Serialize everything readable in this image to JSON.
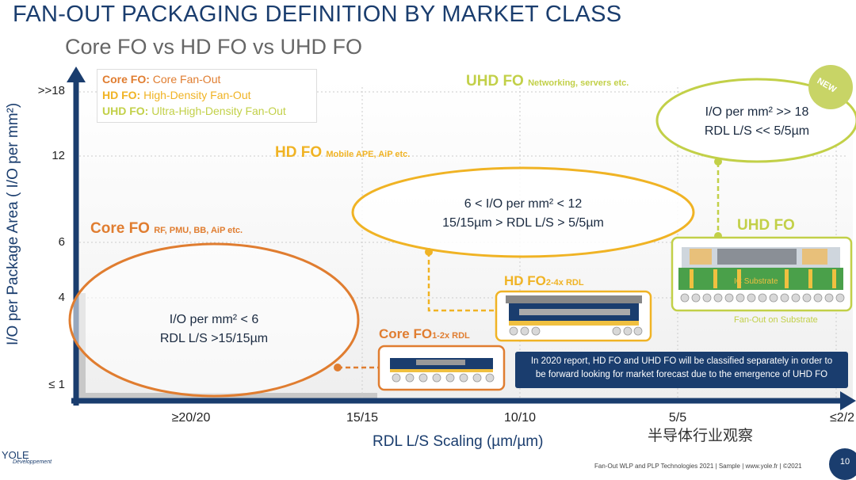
{
  "title": "FAN-OUT PACKAGING DEFINITION BY MARKET CLASS",
  "subtitle": "Core FO vs HD FO vs UHD FO",
  "axes": {
    "y_label": "I/O per Package Area ( I/O per mm²)",
    "y_ticks": [
      ">>18",
      "12",
      "6",
      "4",
      "≤ 1"
    ],
    "x_label": "RDL L/S Scaling (µm/µm)",
    "x_ticks": [
      "≥20/20",
      "15/15",
      "10/10",
      "5/5",
      "≤2/2"
    ]
  },
  "legend": {
    "core": {
      "abbr": "Core FO:",
      "name": "Core Fan-Out"
    },
    "hd": {
      "abbr": "HD FO:",
      "name": "High-Density Fan-Out"
    },
    "uhd": {
      "abbr": "UHD FO:",
      "name": "Ultra-High-Density Fan-Out"
    }
  },
  "classes": {
    "uhd_top": {
      "name": "UHD FO",
      "apps": "Networking, servers etc."
    },
    "hd_top": {
      "name": "HD FO",
      "apps": "Mobile APE, AiP  etc."
    },
    "core_top": {
      "name": "Core FO",
      "apps": "RF, PMU, BB, AiP etc."
    }
  },
  "ellipses": {
    "core": {
      "line1": "I/O per mm² < 6",
      "line2": "RDL L/S >15/15µm"
    },
    "hd": {
      "line1": "6 < I/O per mm² < 12",
      "line2": "15/15µm > RDL L/S > 5/5µm"
    },
    "uhd": {
      "line1": "I/O per mm² >> 18",
      "line2": "RDL L/S << 5/5µm"
    }
  },
  "badge": "NEW",
  "packages": {
    "core": {
      "name": "Core FO",
      "sub": "1-2x RDL"
    },
    "hd": {
      "name": "HD FO",
      "sub": "2-4x RDL"
    },
    "uhd": {
      "name": "UHD FO",
      "substrate": "IC Substrate",
      "caption": "Fan-Out on Substrate"
    }
  },
  "note": {
    "line1": "In 2020 report, HD FO and UHD FO will be classified separately in order to",
    "line2": "be forward looking for market forecast due to the emergence of UHD FO"
  },
  "footer": "Fan-Out WLP and PLP Technologies 2021 | Sample | www.yole.fr | ©2021",
  "page_number": "10",
  "logo": {
    "name": "YOLE",
    "sub": "Développement"
  },
  "watermark": "半导体行业观察",
  "colors": {
    "core": "#e07d30",
    "hd": "#f0b324",
    "uhd": "#c2d048",
    "navy": "#1a3d6e"
  }
}
